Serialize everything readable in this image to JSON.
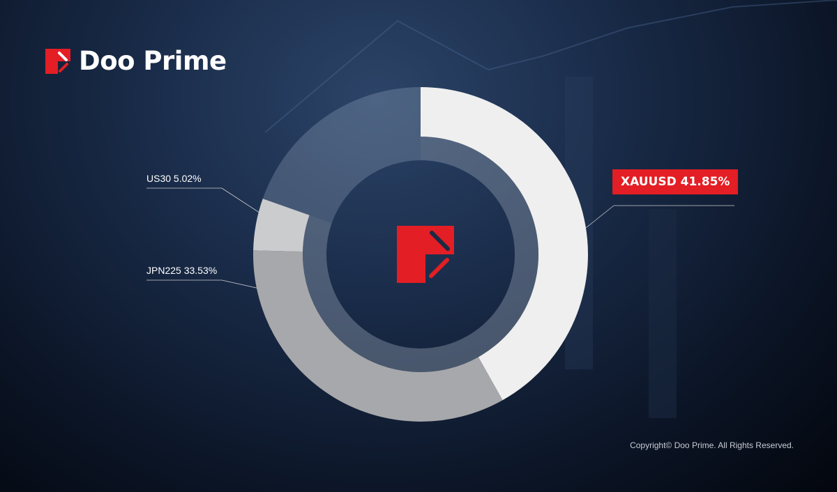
{
  "brand": {
    "name": "Doo Prime",
    "accent": "#e31e24"
  },
  "chart_data": {
    "type": "pie",
    "donut": true,
    "categories": [
      "XAUUSD",
      "JPN225",
      "US30"
    ],
    "values": [
      41.85,
      33.53,
      5.02
    ],
    "labels": [
      "XAUUSD 41.85%",
      "JPN225 33.53%",
      "US30 5.02%"
    ],
    "colors": [
      "#efefef",
      "#a7a8ab",
      "#cbccce"
    ],
    "remainder_color": "rgba(180,195,215,0.25)"
  },
  "footer": {
    "copyright": "Copyright© Doo Prime. All Rights Reserved."
  }
}
